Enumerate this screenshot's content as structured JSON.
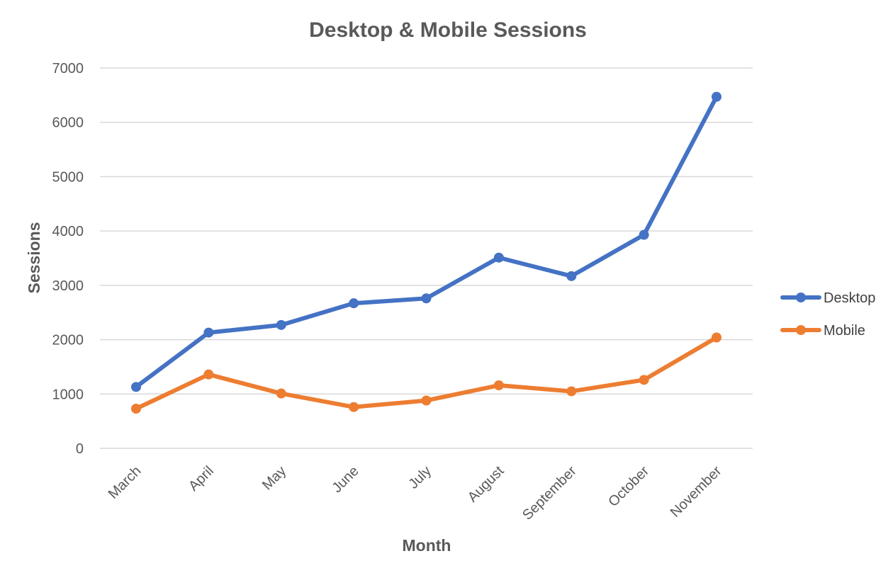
{
  "chart_data": {
    "type": "line",
    "title": "Desktop & Mobile Sessions",
    "xlabel": "Month",
    "ylabel": "Sessions",
    "categories": [
      "March",
      "April",
      "May",
      "June",
      "July",
      "August",
      "September",
      "October",
      "November"
    ],
    "series": [
      {
        "name": "Desktop",
        "color": "#4472c4",
        "values": [
          1130,
          2130,
          2270,
          2670,
          2760,
          3510,
          3170,
          3930,
          6470
        ]
      },
      {
        "name": "Mobile",
        "color": "#ed7d31",
        "values": [
          730,
          1360,
          1010,
          760,
          880,
          1160,
          1050,
          1260,
          2040
        ]
      }
    ],
    "ylim": [
      0,
      7000
    ],
    "yticks": [
      0,
      1000,
      2000,
      3000,
      4000,
      5000,
      6000,
      7000
    ],
    "grid": true,
    "legend_position": "right"
  }
}
